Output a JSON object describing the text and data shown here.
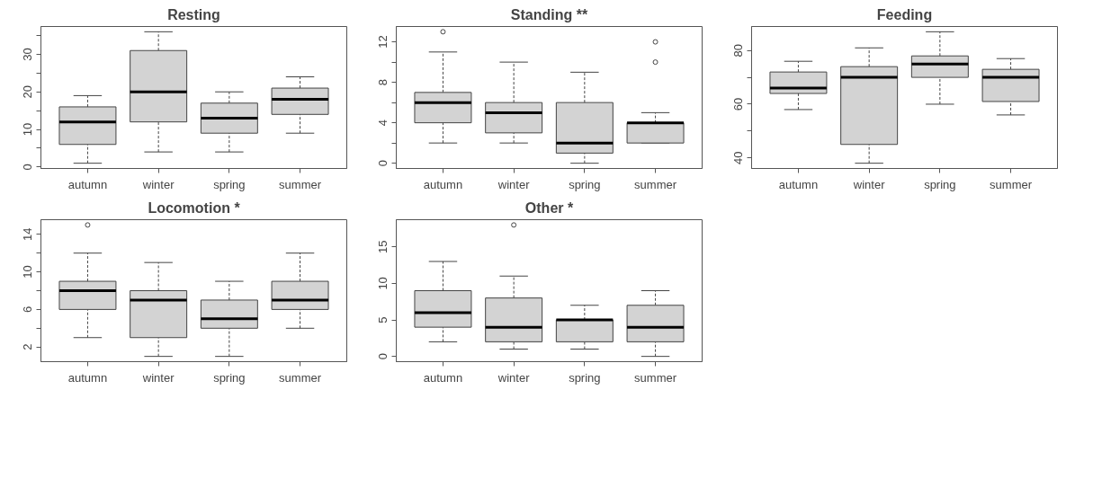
{
  "chart_data": [
    {
      "type": "box",
      "title": "Resting",
      "categories": [
        "autumn",
        "winter",
        "spring",
        "summer"
      ],
      "color": "#d3d3d3",
      "grid": false,
      "boxes": [
        {
          "low": 1,
          "q1": 6,
          "median": 12,
          "q3": 16,
          "high": 19
        },
        {
          "low": 4,
          "q1": 12,
          "median": 20,
          "q3": 31,
          "high": 36
        },
        {
          "low": 4,
          "q1": 9,
          "median": 13,
          "q3": 17,
          "high": 20
        },
        {
          "low": 9,
          "q1": 14,
          "median": 18,
          "q3": 21,
          "high": 24
        }
      ],
      "ylim": [
        -0.4,
        37.4
      ],
      "yticks": [
        0,
        {
          "value": 5,
          "label": null
        },
        10,
        {
          "value": 15,
          "label": null
        },
        20,
        {
          "value": 25,
          "label": null
        },
        30,
        {
          "value": 35,
          "label": null
        }
      ]
    },
    {
      "type": "box",
      "title": "Standing **",
      "categories": [
        "autumn",
        "winter",
        "spring",
        "summer"
      ],
      "color": "#d3d3d3",
      "grid": false,
      "boxes": [
        {
          "low": 2,
          "q1": 4,
          "median": 6,
          "q3": 7,
          "high": 11,
          "outliers": [
            13
          ]
        },
        {
          "low": 2,
          "q1": 3,
          "median": 5,
          "q3": 6,
          "high": 10
        },
        {
          "low": 0,
          "q1": 1,
          "median": 2,
          "q3": 6,
          "high": 9
        },
        {
          "low": 2,
          "q1": 2,
          "median": 4,
          "q3": 4,
          "high": 5,
          "outliers": [
            10,
            12
          ]
        }
      ],
      "ylim": [
        -0.52,
        13.52
      ],
      "yticks": [
        0,
        {
          "value": 2,
          "label": null
        },
        4,
        {
          "value": 6,
          "label": null
        },
        8,
        {
          "value": 10,
          "label": null
        },
        12
      ]
    },
    {
      "type": "box",
      "title": "Feeding",
      "categories": [
        "autumn",
        "winter",
        "spring",
        "summer"
      ],
      "color": "#d3d3d3",
      "grid": false,
      "boxes": [
        {
          "low": 58,
          "q1": 64,
          "median": 66,
          "q3": 72,
          "high": 76
        },
        {
          "low": 38,
          "q1": 45,
          "median": 70,
          "q3": 74,
          "high": 81
        },
        {
          "low": 60,
          "q1": 70,
          "median": 75,
          "q3": 78,
          "high": 87
        },
        {
          "low": 56,
          "q1": 61,
          "median": 70,
          "q3": 73,
          "high": 77
        }
      ],
      "ylim": [
        36.04,
        88.96
      ],
      "yticks": [
        40,
        {
          "value": 50,
          "label": null
        },
        60,
        {
          "value": 70,
          "label": null
        },
        80
      ]
    },
    {
      "type": "box",
      "title": "Locomotion *",
      "categories": [
        "autumn",
        "winter",
        "spring",
        "summer"
      ],
      "color": "#d3d3d3",
      "grid": false,
      "boxes": [
        {
          "low": 3,
          "q1": 6,
          "median": 8,
          "q3": 9,
          "high": 12,
          "outliers": [
            15
          ]
        },
        {
          "low": 1,
          "q1": 3,
          "median": 7,
          "q3": 8,
          "high": 11
        },
        {
          "low": 1,
          "q1": 4,
          "median": 5,
          "q3": 7,
          "high": 9
        },
        {
          "low": 4,
          "q1": 6,
          "median": 7,
          "q3": 9,
          "high": 12
        }
      ],
      "ylim": [
        0.44,
        15.56
      ],
      "yticks": [
        2,
        {
          "value": 4,
          "label": null
        },
        6,
        {
          "value": 8,
          "label": null
        },
        10,
        {
          "value": 12,
          "label": null
        },
        14
      ]
    },
    {
      "type": "box",
      "title": "Other *",
      "categories": [
        "autumn",
        "winter",
        "spring",
        "summer"
      ],
      "color": "#d3d3d3",
      "grid": false,
      "boxes": [
        {
          "low": 2,
          "q1": 4,
          "median": 6,
          "q3": 9,
          "high": 13
        },
        {
          "low": 1,
          "q1": 2,
          "median": 4,
          "q3": 8,
          "high": 11,
          "outliers": [
            18
          ]
        },
        {
          "low": 1,
          "q1": 2,
          "median": 5,
          "q3": 5,
          "high": 7
        },
        {
          "low": 0,
          "q1": 2,
          "median": 4,
          "q3": 7,
          "high": 9
        }
      ],
      "ylim": [
        -0.72,
        18.72
      ],
      "yticks": [
        0,
        5,
        10,
        15
      ]
    }
  ]
}
